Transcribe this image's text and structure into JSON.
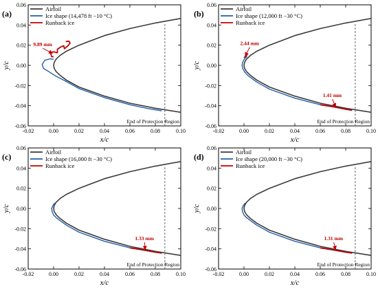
{
  "colors": {
    "airfoil": "#3a3a3a",
    "ice": "#1f5fa8",
    "runback": "#c00000",
    "annotation": "#c00000"
  },
  "chart_data": [
    {
      "type": "line",
      "panel": "(a)",
      "xlabel": "x/c",
      "ylabel": "y/c",
      "xlim": [
        -0.02,
        0.1
      ],
      "ylim": [
        -0.06,
        0.06
      ],
      "xticks": [
        "-0.02",
        "0.00",
        "0.02",
        "0.04",
        "0.06",
        "0.08",
        "0.10"
      ],
      "yticks": [
        "-0.06",
        "-0.04",
        "-0.02",
        "0.00",
        "0.02",
        "0.04",
        "0.06"
      ],
      "legend": [
        "Airfoil",
        "Ice shape (14,478 ft −10 °C)",
        "Runback ice"
      ],
      "protection_end_x": 0.0875,
      "protection_label": "End of Protection Region",
      "annotations": [
        {
          "text": "9.89 mm",
          "x": -0.016,
          "y": 0.019,
          "ax": -0.001,
          "ay": 0.012
        }
      ],
      "series": [
        {
          "name": "Airfoil",
          "x": [
            0.1,
            0.08,
            0.06,
            0.04,
            0.02,
            0.01,
            0.005,
            0.002,
            0.0005,
            0.0,
            0.0005,
            0.002,
            0.005,
            0.01,
            0.02,
            0.04,
            0.06,
            0.08,
            0.1
          ],
          "y": [
            0.0465,
            0.042,
            0.0365,
            0.0295,
            0.02,
            0.014,
            0.0098,
            0.0062,
            0.003,
            0.0,
            -0.003,
            -0.0062,
            -0.0098,
            -0.0145,
            -0.0215,
            -0.0305,
            -0.0375,
            -0.0425,
            -0.0465
          ]
        },
        {
          "name": "Ice shape (14,478 ft −10 °C)",
          "x": [
            0.0,
            -0.003,
            -0.007,
            -0.009,
            -0.008,
            -0.004,
            0.001,
            0.01,
            0.02,
            0.04,
            0.06,
            0.075,
            0.085
          ],
          "y": [
            0.006,
            0.0065,
            0.005,
            0.001,
            -0.003,
            -0.006,
            -0.01,
            -0.016,
            -0.023,
            -0.032,
            -0.039,
            -0.043,
            -0.045
          ]
        },
        {
          "name": "Runback ice",
          "x": [
            0.0,
            -0.0015,
            -0.0025,
            0.0,
            0.003,
            0.003,
            0.006,
            0.008,
            0.0085,
            0.011,
            0.013,
            0.012,
            0.0095
          ],
          "y": [
            0.0085,
            0.0085,
            0.0125,
            0.0135,
            0.0125,
            0.016,
            0.0185,
            0.0195,
            0.0165,
            0.019,
            0.022,
            0.024,
            0.0235
          ]
        }
      ]
    },
    {
      "type": "line",
      "panel": "(b)",
      "xlabel": "x/c",
      "ylabel": "y/c",
      "xlim": [
        -0.02,
        0.1
      ],
      "ylim": [
        -0.06,
        0.06
      ],
      "xticks": [
        "-0.02",
        "0.00",
        "0.02",
        "0.04",
        "0.06",
        "0.08",
        "0.10"
      ],
      "yticks": [
        "-0.06",
        "-0.04",
        "-0.02",
        "0.00",
        "0.02",
        "0.04",
        "0.06"
      ],
      "legend": [
        "Airfoil",
        "Ice shape (12,000 ft −30 °C)",
        "Runback ice"
      ],
      "protection_end_x": 0.0875,
      "protection_label": "End of Protection Region",
      "annotations": [
        {
          "text": "2.44 mm",
          "x": -0.003,
          "y": 0.02,
          "ax": 0.001,
          "ay": 0.0095
        },
        {
          "text": "1.41 mm",
          "x": 0.062,
          "y": -0.0315,
          "ax": 0.072,
          "ay": -0.041
        }
      ],
      "series": [
        {
          "name": "Airfoil",
          "x": [
            0.1,
            0.08,
            0.06,
            0.04,
            0.02,
            0.01,
            0.005,
            0.002,
            0.0005,
            0.0,
            0.0005,
            0.002,
            0.005,
            0.01,
            0.02,
            0.04,
            0.06,
            0.08,
            0.1
          ],
          "y": [
            0.0465,
            0.042,
            0.0365,
            0.0295,
            0.02,
            0.014,
            0.0098,
            0.0062,
            0.003,
            0.0,
            -0.003,
            -0.0062,
            -0.0098,
            -0.0145,
            -0.0215,
            -0.0305,
            -0.0375,
            -0.0425,
            -0.0465
          ]
        },
        {
          "name": "Ice shape (12,000 ft −30 °C)",
          "x": [
            0.0025,
            0.0005,
            -0.001,
            -0.0015,
            -0.001,
            0.0005,
            0.003,
            0.01,
            0.02,
            0.04,
            0.06,
            0.08,
            0.085
          ],
          "y": [
            0.009,
            0.0065,
            0.003,
            0.0,
            -0.003,
            -0.0065,
            -0.01,
            -0.0165,
            -0.0235,
            -0.0325,
            -0.039,
            -0.0432,
            -0.044
          ]
        },
        {
          "name": "Runback ice",
          "x": [
            0.06,
            0.07,
            0.08,
            0.085
          ],
          "y": [
            -0.039,
            -0.041,
            -0.0435,
            -0.0445
          ]
        },
        {
          "name": "Runback ice",
          "x": [
            0.0,
            0.0012,
            0.0025,
            0.002
          ],
          "y": [
            0.0075,
            0.009,
            0.0105,
            0.012
          ]
        }
      ]
    },
    {
      "type": "line",
      "panel": "(c)",
      "xlabel": "x/c",
      "ylabel": "y/c",
      "xlim": [
        -0.02,
        0.1
      ],
      "ylim": [
        -0.06,
        0.06
      ],
      "xticks": [
        "-0.02",
        "0.00",
        "0.02",
        "0.04",
        "0.06",
        "0.08",
        "0.10"
      ],
      "yticks": [
        "-0.06",
        "-0.04",
        "-0.02",
        "0.00",
        "0.02",
        "0.04",
        "0.06"
      ],
      "legend": [
        "Airfoil",
        "Ice shape (16,000 ft −30 °C)",
        "Runback ice"
      ],
      "protection_end_x": 0.0875,
      "protection_label": "End of Protection Region",
      "annotations": [
        {
          "text": "1.33 mm",
          "x": 0.064,
          "y": -0.0315,
          "ax": 0.072,
          "ay": -0.0405
        }
      ],
      "series": [
        {
          "name": "Airfoil",
          "x": [
            0.1,
            0.08,
            0.06,
            0.04,
            0.02,
            0.01,
            0.005,
            0.002,
            0.0005,
            0.0,
            0.0005,
            0.002,
            0.005,
            0.01,
            0.02,
            0.04,
            0.06,
            0.08,
            0.1
          ],
          "y": [
            0.0465,
            0.042,
            0.0365,
            0.0295,
            0.02,
            0.014,
            0.0098,
            0.0062,
            0.003,
            0.0,
            -0.003,
            -0.0062,
            -0.0098,
            -0.0145,
            -0.0215,
            -0.0305,
            -0.0375,
            -0.0425,
            -0.0465
          ]
        },
        {
          "name": "Ice shape (16,000 ft −30 °C)",
          "x": [
            0.001,
            -0.0005,
            -0.0015,
            -0.0012,
            0.0,
            0.002,
            0.005,
            0.01,
            0.02,
            0.04,
            0.06,
            0.08,
            0.085
          ],
          "y": [
            0.0055,
            0.003,
            0.0,
            -0.003,
            -0.0065,
            -0.009,
            -0.012,
            -0.0165,
            -0.0235,
            -0.0325,
            -0.039,
            -0.0433,
            -0.0442
          ]
        },
        {
          "name": "Runback ice",
          "x": [
            0.06,
            0.07,
            0.08,
            0.085
          ],
          "y": [
            -0.039,
            -0.041,
            -0.0433,
            -0.0442
          ]
        }
      ]
    },
    {
      "type": "line",
      "panel": "(d)",
      "xlabel": "x/c",
      "ylabel": "y/c",
      "xlim": [
        -0.02,
        0.1
      ],
      "ylim": [
        -0.06,
        0.06
      ],
      "xticks": [
        "-0.02",
        "0.00",
        "0.02",
        "0.04",
        "0.06",
        "0.08",
        "0.10"
      ],
      "yticks": [
        "-0.06",
        "-0.04",
        "-0.02",
        "0.00",
        "0.02",
        "0.04",
        "0.06"
      ],
      "legend": [
        "Airfoil",
        "Ice shape (20,000 ft −30 °C)",
        "Runback ice"
      ],
      "protection_end_x": 0.0875,
      "protection_label": "End of Protection Region",
      "annotations": [
        {
          "text": "1.31 mm",
          "x": 0.063,
          "y": -0.0315,
          "ax": 0.072,
          "ay": -0.0405
        }
      ],
      "series": [
        {
          "name": "Airfoil",
          "x": [
            0.1,
            0.08,
            0.06,
            0.04,
            0.02,
            0.01,
            0.005,
            0.002,
            0.0005,
            0.0,
            0.0005,
            0.002,
            0.005,
            0.01,
            0.02,
            0.04,
            0.06,
            0.08,
            0.1
          ],
          "y": [
            0.0465,
            0.042,
            0.0365,
            0.0295,
            0.02,
            0.014,
            0.0098,
            0.0062,
            0.003,
            0.0,
            -0.003,
            -0.0062,
            -0.0098,
            -0.0145,
            -0.0215,
            -0.0305,
            -0.0375,
            -0.0425,
            -0.0465
          ]
        },
        {
          "name": "Ice shape (20,000 ft −30 °C)",
          "x": [
            0.001,
            -0.0005,
            -0.0015,
            -0.0012,
            0.0,
            0.002,
            0.005,
            0.01,
            0.02,
            0.04,
            0.06,
            0.08,
            0.085
          ],
          "y": [
            0.0055,
            0.003,
            0.0,
            -0.003,
            -0.0065,
            -0.009,
            -0.012,
            -0.0165,
            -0.0235,
            -0.0325,
            -0.039,
            -0.0433,
            -0.0442
          ]
        },
        {
          "name": "Runback ice",
          "x": [
            0.06,
            0.07,
            0.08,
            0.085
          ],
          "y": [
            -0.039,
            -0.041,
            -0.0433,
            -0.0442
          ]
        }
      ]
    }
  ]
}
